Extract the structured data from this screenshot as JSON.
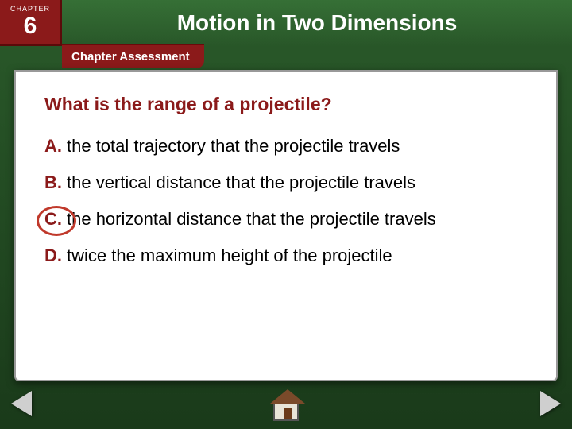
{
  "chapter": {
    "label": "CHAPTER",
    "number": "6"
  },
  "title": "Motion in Two Dimensions",
  "subheader": "Chapter Assessment",
  "question": "What is the range of a projectile?",
  "options": [
    {
      "letter": "A.",
      "text": "the total trajectory that the projectile travels",
      "circled": false
    },
    {
      "letter": "B.",
      "text": "the vertical distance that the projectile travels",
      "circled": false
    },
    {
      "letter": "C.",
      "text": "the horizontal distance that the projectile travels",
      "circled": true
    },
    {
      "letter": "D.",
      "text": "twice the maximum height of the projectile",
      "circled": false
    }
  ],
  "colors": {
    "accent": "#8b1a1a",
    "circle": "#c0392b",
    "bg_top": "#2a5a2a",
    "bg_bottom": "#1a3a1a",
    "panel": "#ffffff"
  }
}
